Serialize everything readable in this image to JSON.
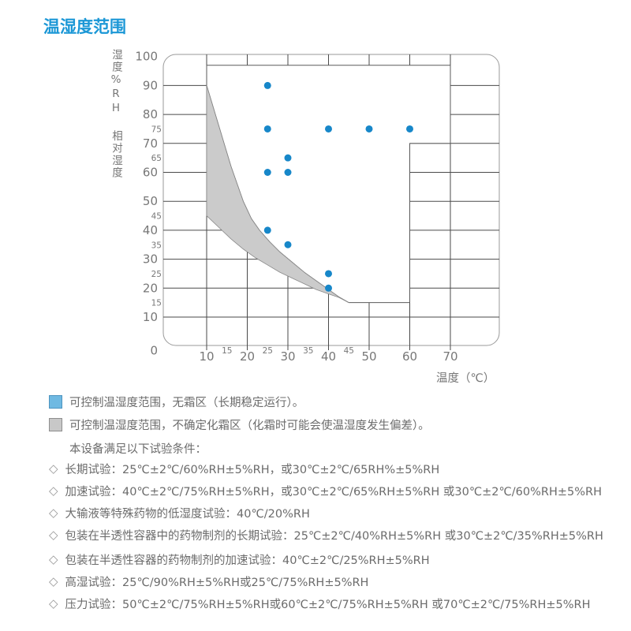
{
  "page": {
    "title": "温湿度范围"
  },
  "chart_data": {
    "type": "scatter",
    "title": "温湿度范围",
    "xlabel": "温度（℃）",
    "ylabel": "湿度%RH 相对湿度",
    "ylabel_vertical": "湿度%RH 相对湿度",
    "xlim": [
      0,
      70
    ],
    "ylim": [
      0,
      100
    ],
    "grid": "on (outside controllable zone only)",
    "x_major_ticks": [
      10,
      20,
      30,
      40,
      50,
      60,
      70
    ],
    "x_minor_ticks": [
      15,
      25,
      35,
      45
    ],
    "y_major_ticks": [
      0,
      10,
      20,
      30,
      40,
      50,
      60,
      70,
      80,
      90,
      100
    ],
    "y_minor_ticks": [
      15,
      25,
      35,
      45,
      65,
      75
    ],
    "points": [
      [
        25,
        90
      ],
      [
        25,
        75
      ],
      [
        40,
        75
      ],
      [
        50,
        75
      ],
      [
        60,
        75
      ],
      [
        30,
        65
      ],
      [
        25,
        60
      ],
      [
        30,
        60
      ],
      [
        25,
        40
      ],
      [
        30,
        35
      ],
      [
        40,
        25
      ],
      [
        40,
        20
      ]
    ],
    "envelope": {
      "description": "可控制温湿度范围，无霜区 — white controllable no-frost zone",
      "top_rh": 97,
      "corner_steps": [
        [
          70,
          97
        ],
        [
          70,
          70
        ],
        [
          60,
          70
        ],
        [
          60,
          15
        ],
        [
          45,
          15
        ]
      ],
      "frost_upper": [
        [
          10,
          90
        ],
        [
          11.5,
          83
        ],
        [
          13,
          76
        ],
        [
          14.5,
          69
        ],
        [
          16,
          62
        ],
        [
          17.5,
          56
        ],
        [
          19,
          50
        ],
        [
          21,
          44
        ],
        [
          23,
          40
        ],
        [
          25.5,
          36
        ],
        [
          28,
          32.5
        ],
        [
          31,
          29
        ],
        [
          34,
          25.5
        ],
        [
          37,
          22.5
        ],
        [
          40,
          19.5
        ],
        [
          42.5,
          17
        ],
        [
          45,
          15
        ]
      ],
      "frost_lower": [
        [
          10,
          45
        ],
        [
          13,
          41
        ],
        [
          16,
          37
        ],
        [
          19,
          33.5
        ],
        [
          22,
          30.5
        ],
        [
          25,
          28
        ],
        [
          28,
          25.5
        ],
        [
          31,
          23.5
        ],
        [
          34,
          21.5
        ],
        [
          37,
          19.5
        ],
        [
          40,
          18
        ],
        [
          42.5,
          16.8
        ],
        [
          45,
          15
        ]
      ]
    },
    "colors": {
      "point": "#1787c9",
      "defrost_zone_fill": "#cbcbcb",
      "zone_stroke": "#8a8a8a",
      "grid_line": "#4a4a4a",
      "outer_border": "#9a9a9a",
      "tick_label": "#777777"
    }
  },
  "legend": {
    "items": [
      {
        "swatch_fill": "#6fb9e2",
        "swatch_border": "#4d94bf",
        "label": "可控制温湿度范围，无霜区（长期稳定运行）。"
      },
      {
        "swatch_fill": "#c8c8c8",
        "swatch_border": "#8e8e8e",
        "label": "可控制温湿度范围，不确定化霜区（化霜时可能会使温湿度发生偏差）。"
      }
    ]
  },
  "conditions": {
    "intro": "本设备满足以下试验条件：",
    "bullet": "◇",
    "items": [
      "长期试验：25℃±2℃/60%RH±5%RH，或30℃±2℃/65RH%±5%RH",
      "加速试验：40℃±2℃/75%RH±5%RH，或30℃±2℃/65%RH±5%RH 或30℃±2℃/60%RH±5%RH",
      "大输液等特殊药物的低湿度试验：40℃/20%RH",
      "包装在半透性容器中的药物制剂的长期试验：25℃±2℃/40%RH±5%RH 或30℃±2℃/35%RH±5%RH",
      "包装在半透性容器的药物制剂的加速试验：40℃±2℃/25%RH±5%RH",
      "高湿试验：25℃/90%RH±5%RH或25℃/75%RH±5%RH",
      "压力试验：50℃±2℃/75%RH±5%RH或60℃±2℃/75%RH±5%RH 或70℃±2℃/75%RH±5%RH"
    ]
  }
}
